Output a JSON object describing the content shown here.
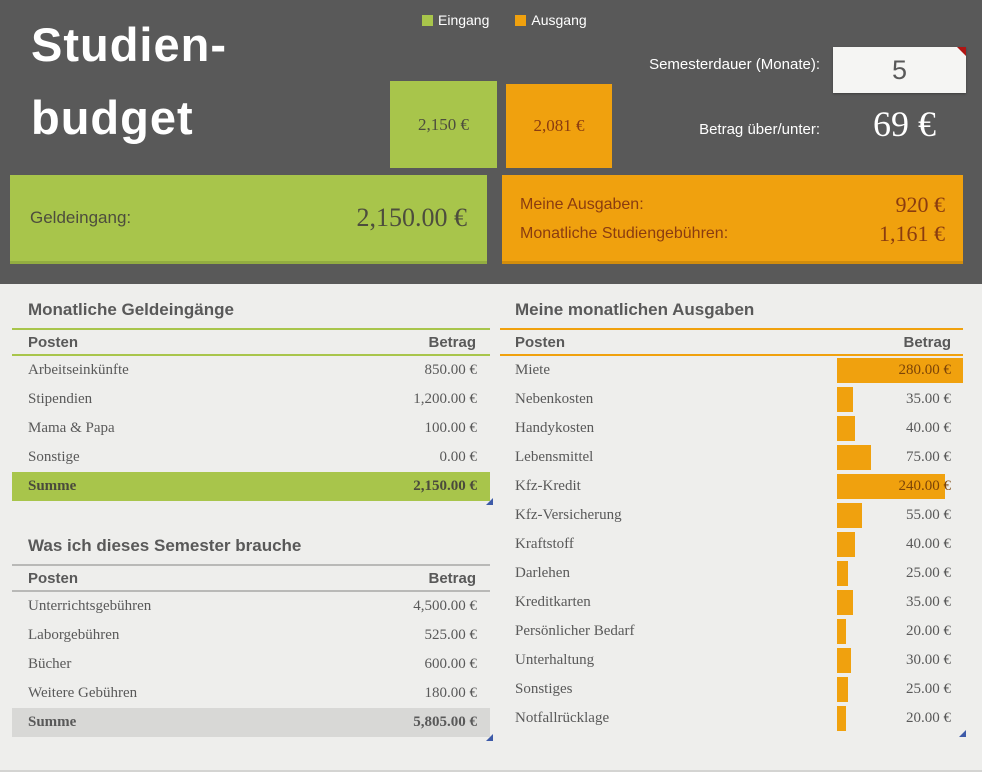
{
  "app": {
    "colors": {
      "dark_header": "#595959",
      "body_bg": "#eeeeec",
      "green": "#a8c54b",
      "orange": "#f0a10e",
      "green_text": "#4d4d3d",
      "orange_text": "#8a3c10",
      "comment_flag_red": "#b01513",
      "resize_handle_blue": "#3d5aa8"
    }
  },
  "header": {
    "title_line1": "Studien-",
    "title_line2": "budget",
    "legend": [
      {
        "label": "Eingang"
      },
      {
        "label": "Ausgang"
      }
    ],
    "semester_duration": {
      "label": "Semesterdauer (Monate):",
      "value": "5"
    },
    "balance": {
      "label": "Betrag über/unter:",
      "value": "69 €"
    },
    "income_banner": {
      "label": "Geldeingang:",
      "value": "2,150.00 €"
    },
    "expense_banner": [
      {
        "label": "Meine Ausgaben:",
        "value": "920 €"
      },
      {
        "label": "Monatliche Studiengebühren:",
        "value": "1,161 €"
      }
    ]
  },
  "chart_data": {
    "type": "bar",
    "title": "",
    "categories": [
      "Eingang",
      "Ausgang"
    ],
    "values": [
      2150,
      2081
    ],
    "value_labels": [
      "2,150 €",
      "2,081 €"
    ],
    "legend_position": "top",
    "colors": [
      "#a8c54b",
      "#f0a10e"
    ]
  },
  "income_table": {
    "title": "Monatliche Geldeingänge",
    "columns": {
      "item": "Posten",
      "amount": "Betrag"
    },
    "rows": [
      {
        "label": "Arbeitseinkünfte",
        "value": "850.00 €"
      },
      {
        "label": "Stipendien",
        "value": "1,200.00 €"
      },
      {
        "label": "Mama & Papa",
        "value": "100.00 €"
      },
      {
        "label": "Sonstige",
        "value": "0.00 €"
      }
    ],
    "total": {
      "label": "Summe",
      "value": "2,150.00 €"
    }
  },
  "semester_table": {
    "title": "Was ich dieses Semester brauche",
    "columns": {
      "item": "Posten",
      "amount": "Betrag"
    },
    "rows": [
      {
        "label": "Unterrichtsgebühren",
        "value": "4,500.00 €"
      },
      {
        "label": "Laborgebühren",
        "value": "525.00 €"
      },
      {
        "label": "Bücher",
        "value": "600.00 €"
      },
      {
        "label": "Weitere Gebühren",
        "value": "180.00 €"
      }
    ],
    "total": {
      "label": "Summe",
      "value": "5,805.00 €"
    }
  },
  "expenses_table": {
    "title": "Meine monatlichen Ausgaben",
    "columns": {
      "item": "Posten",
      "amount": "Betrag"
    },
    "max_amount": 280,
    "bar_max_width": 126,
    "rows": [
      {
        "label": "Miete",
        "amount": 280,
        "value": "280.00 €"
      },
      {
        "label": "Nebenkosten",
        "amount": 35,
        "value": "35.00 €"
      },
      {
        "label": "Handykosten",
        "amount": 40,
        "value": "40.00 €"
      },
      {
        "label": "Lebensmittel",
        "amount": 75,
        "value": "75.00 €"
      },
      {
        "label": "Kfz-Kredit",
        "amount": 240,
        "value": "240.00 €"
      },
      {
        "label": "Kfz-Versicherung",
        "amount": 55,
        "value": "55.00 €"
      },
      {
        "label": "Kraftstoff",
        "amount": 40,
        "value": "40.00 €"
      },
      {
        "label": "Darlehen",
        "amount": 25,
        "value": "25.00 €"
      },
      {
        "label": "Kreditkarten",
        "amount": 35,
        "value": "35.00 €"
      },
      {
        "label": "Persönlicher Bedarf",
        "amount": 20,
        "value": "20.00 €"
      },
      {
        "label": "Unterhaltung",
        "amount": 30,
        "value": "30.00 €"
      },
      {
        "label": "Sonstiges",
        "amount": 25,
        "value": "25.00 €"
      },
      {
        "label": "Notfallrücklage",
        "amount": 20,
        "value": "20.00 €"
      }
    ]
  }
}
